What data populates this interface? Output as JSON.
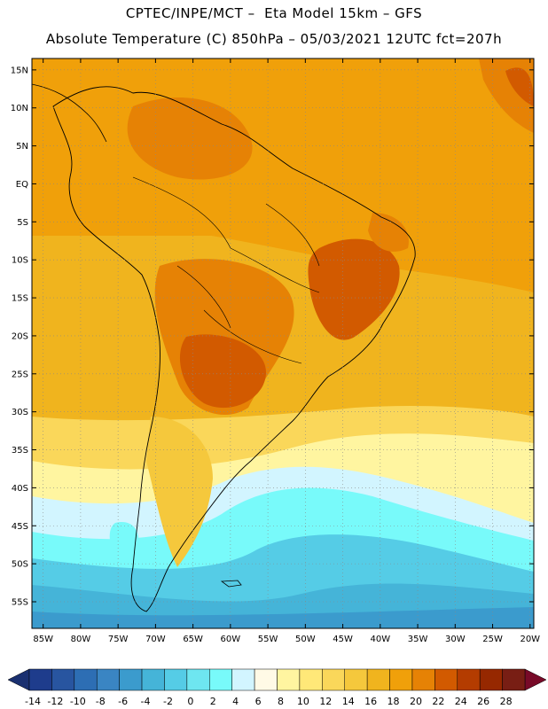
{
  "header": {
    "line1": "CPTEC/INPE/MCT –  Eta Model 15km – GFS",
    "line2": "Absolute Temperature (C) 850hPa – 05/03/2021 12UTC fct=207h"
  },
  "map": {
    "lat_labels": [
      "15N",
      "10N",
      "5N",
      "EQ",
      "5S",
      "10S",
      "15S",
      "20S",
      "25S",
      "30S",
      "35S",
      "40S",
      "45S",
      "50S",
      "55S"
    ],
    "lon_labels": [
      "85W",
      "80W",
      "75W",
      "70W",
      "65W",
      "60W",
      "55W",
      "50W",
      "45W",
      "40W",
      "35W",
      "30W",
      "25W",
      "20W"
    ],
    "lat_values": [
      15,
      10,
      5,
      0,
      -5,
      -10,
      -15,
      -20,
      -25,
      -30,
      -35,
      -40,
      -45,
      -50,
      -55
    ],
    "lon_values": [
      -85,
      -80,
      -75,
      -70,
      -65,
      -60,
      -55,
      -50,
      -45,
      -40,
      -35,
      -30,
      -25,
      -20
    ]
  },
  "colorbar": {
    "tick_labels": [
      "-14",
      "-12",
      "-10",
      "-8",
      "-6",
      "-4",
      "-2",
      "0",
      "2",
      "4",
      "6",
      "8",
      "10",
      "12",
      "14",
      "16",
      "18",
      "20",
      "22",
      "24",
      "26",
      "28"
    ],
    "colors": [
      "#1e3c8c",
      "#2855a0",
      "#2d6eb4",
      "#3a85c3",
      "#3b9bcd",
      "#45b4d8",
      "#55cce6",
      "#6ee6f0",
      "#78fafa",
      "#d2f5ff",
      "#fffae6",
      "#fff5a0",
      "#ffe878",
      "#fad75a",
      "#f5c83c",
      "#f0b41e",
      "#f0a00a",
      "#e68205",
      "#d25a00",
      "#b43c00",
      "#962800",
      "#781e14"
    ],
    "under_color": "#1a3070",
    "over_color": "#780a28"
  }
}
